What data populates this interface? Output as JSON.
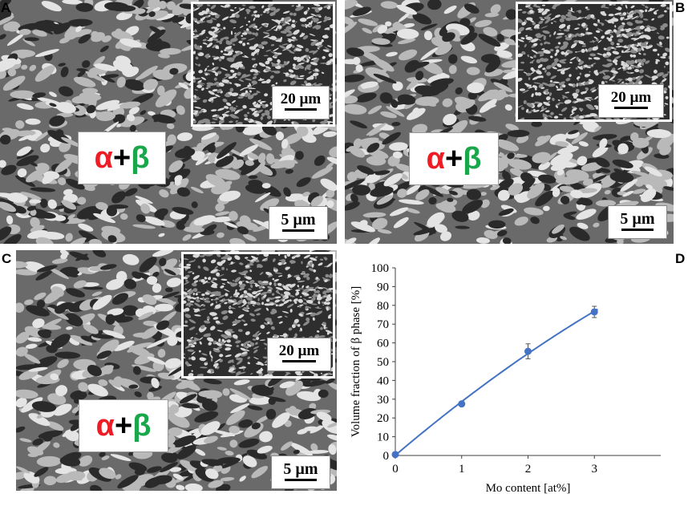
{
  "panels": {
    "a": {
      "letter": "A",
      "scale_main": "5 µm",
      "scale_inset": "20 µm",
      "alpha": "α",
      "plus": "+",
      "beta": "β"
    },
    "b": {
      "letter": "B",
      "scale_main": "5 µm",
      "scale_inset": "20 µm",
      "alpha": "α",
      "plus": "+",
      "beta": "β"
    },
    "c": {
      "letter": "C",
      "scale_main": "5 µm",
      "scale_inset": "20 µm",
      "alpha": "α",
      "plus": "+",
      "beta": "β"
    },
    "d": {
      "letter": "D"
    }
  },
  "colors": {
    "alpha": "#ee1c25",
    "beta": "#1aa64a",
    "series": "#4472c4",
    "axis": "#404040"
  },
  "chart_data": {
    "type": "line",
    "xlabel": "Mo content [at%]",
    "ylabel": "Volume fraction of β phase [%]",
    "xlim": [
      0,
      4
    ],
    "ylim": [
      0,
      100
    ],
    "xticks": [
      0,
      1,
      2,
      3
    ],
    "yticks": [
      0,
      10,
      20,
      30,
      40,
      50,
      60,
      70,
      80,
      90,
      100
    ],
    "grid": false,
    "series": [
      {
        "x": [
          0,
          1,
          2,
          3
        ],
        "y": [
          0.5,
          27.5,
          55.5,
          76.5
        ],
        "err": [
          0,
          0,
          4,
          3
        ],
        "fit": "smooth"
      }
    ]
  }
}
